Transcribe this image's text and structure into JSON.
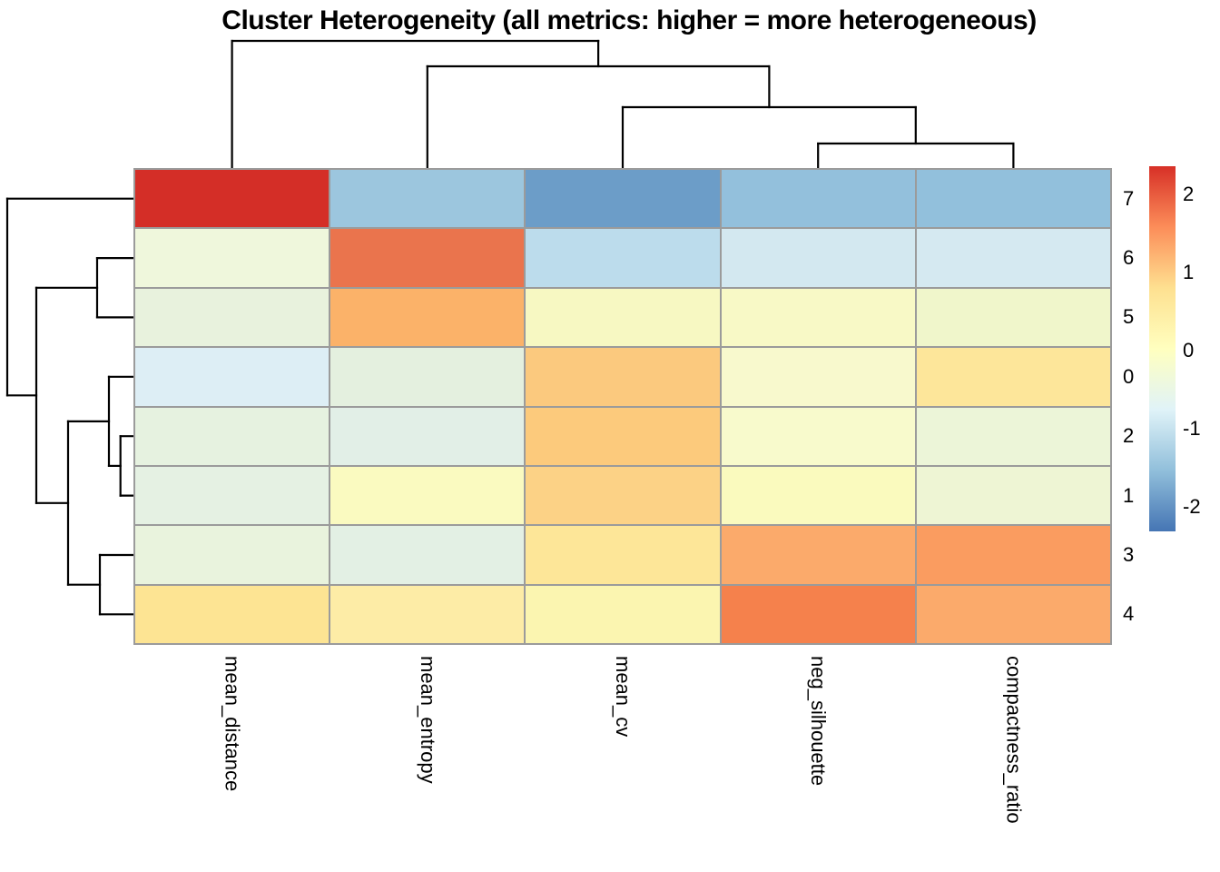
{
  "title": "Cluster Heterogeneity (all metrics: higher = more heterogeneous)",
  "colors": {
    "background": "#ffffff",
    "grid_border": "#9b9b9b",
    "dendrogram_line": "#000000",
    "text": "#000000"
  },
  "chart_data": {
    "type": "heatmap",
    "title": "Cluster Heterogeneity (all metrics: higher = more heterogeneous)",
    "columns": [
      "mean_distance",
      "mean_entropy",
      "mean_cv",
      "neg_silhouette",
      "compactness_ratio"
    ],
    "rows": [
      "7",
      "6",
      "5",
      "0",
      "2",
      "1",
      "3",
      "4"
    ],
    "values_note": "z-scores estimated from the color scale",
    "values": [
      [
        2.3,
        -1.35,
        -1.9,
        -1.45,
        -1.45
      ],
      [
        -0.35,
        1.85,
        -1.1,
        -0.85,
        -0.85
      ],
      [
        -0.45,
        1.2,
        -0.05,
        -0.05,
        -0.2
      ],
      [
        -0.8,
        -0.5,
        1.0,
        -0.05,
        0.6
      ],
      [
        -0.45,
        -0.55,
        1.0,
        -0.05,
        -0.35
      ],
      [
        -0.5,
        0.0,
        0.9,
        0.0,
        -0.3
      ],
      [
        -0.4,
        -0.55,
        0.65,
        1.3,
        1.45
      ],
      [
        0.7,
        0.45,
        0.15,
        1.7,
        1.3
      ]
    ],
    "cell_colors": [
      [
        "#d42e27",
        "#9cc6de",
        "#6c9dc8",
        "#93c0dc",
        "#92c0dc"
      ],
      [
        "#eff7dc",
        "#ea744d",
        "#bcdcec",
        "#d3e8f0",
        "#d5e9f1"
      ],
      [
        "#e8f2dd",
        "#fbb269",
        "#f7f8c2",
        "#f8f9c6",
        "#f0f6cb"
      ],
      [
        "#ddeef5",
        "#e4f0df",
        "#fbc97e",
        "#f8f9cd",
        "#fde69a"
      ],
      [
        "#e6f2e0",
        "#e2efe7",
        "#fcca7c",
        "#f8facc",
        "#ecf5d8"
      ],
      [
        "#e5f1e3",
        "#fafac0",
        "#fcd286",
        "#fafabe",
        "#eef5d4"
      ],
      [
        "#e9f3dd",
        "#e3f0e4",
        "#fde698",
        "#fbaa6b",
        "#fa9c60"
      ],
      [
        "#fde493",
        "#fdeca6",
        "#fbf5b0",
        "#f5814c",
        "#fbaa6b"
      ]
    ],
    "legend": {
      "position": "right",
      "ticks": [
        "2",
        "1",
        "0",
        "-1",
        "-2"
      ],
      "tick_values": [
        2,
        1,
        0,
        -1,
        -2
      ],
      "value_range": [
        -2.31,
        2.36
      ],
      "colormap_top_to_bottom": [
        "#D73027",
        "#FC8D59",
        "#FEE090",
        "#FFFFBF",
        "#E0F3F8",
        "#91BFDB",
        "#4575B4"
      ]
    },
    "col_dendrogram": {
      "order": [
        "mean_distance",
        "mean_entropy",
        "mean_cv",
        "neg_silhouette",
        "compactness_ratio"
      ],
      "segments": [
        [
          255.6,
          45,
          659.1,
          45
        ],
        [
          255.6,
          45,
          255.6,
          185
        ],
        [
          659.1,
          45,
          659.1,
          73
        ],
        [
          470.8,
          73,
          847.4,
          73
        ],
        [
          470.8,
          73,
          470.8,
          185
        ],
        [
          847.4,
          73,
          847.4,
          118
        ],
        [
          686.0,
          118,
          1008.8,
          118
        ],
        [
          686.0,
          118,
          686.0,
          185
        ],
        [
          1008.8,
          118,
          1008.8,
          158
        ],
        [
          901.2,
          158,
          1116.4,
          158
        ],
        [
          901.2,
          158,
          901.2,
          185
        ],
        [
          1116.4,
          158,
          1116.4,
          185
        ]
      ]
    },
    "row_dendrogram": {
      "order": [
        "7",
        "6",
        "5",
        "0",
        "2",
        "1",
        "3",
        "4"
      ],
      "segments": [
        [
          8,
          218.7,
          8,
          435.3
        ],
        [
          8,
          218.7,
          147,
          218.7
        ],
        [
          8,
          435.3,
          40,
          435.3
        ],
        [
          40,
          316.8,
          40,
          553.8
        ],
        [
          40,
          316.8,
          107,
          316.8
        ],
        [
          107,
          284.1,
          107,
          349.4
        ],
        [
          107,
          284.1,
          147,
          284.1
        ],
        [
          107,
          349.4,
          147,
          349.4
        ],
        [
          40,
          553.8,
          75,
          553.8
        ],
        [
          75,
          463.9,
          75,
          643.7
        ],
        [
          75,
          463.9,
          120,
          463.9
        ],
        [
          120,
          414.8,
          120,
          512.9
        ],
        [
          120,
          414.8,
          147,
          414.8
        ],
        [
          120,
          512.9,
          132.7,
          512.9
        ],
        [
          132.7,
          480.2,
          132.7,
          545.6
        ],
        [
          132.7,
          480.2,
          147,
          480.2
        ],
        [
          132.7,
          545.6,
          147,
          545.6
        ],
        [
          75,
          643.7,
          110,
          643.7
        ],
        [
          110,
          611.0,
          110,
          676.3
        ],
        [
          110,
          611.0,
          147,
          611.0
        ],
        [
          110,
          676.3,
          147,
          676.3
        ]
      ]
    }
  }
}
